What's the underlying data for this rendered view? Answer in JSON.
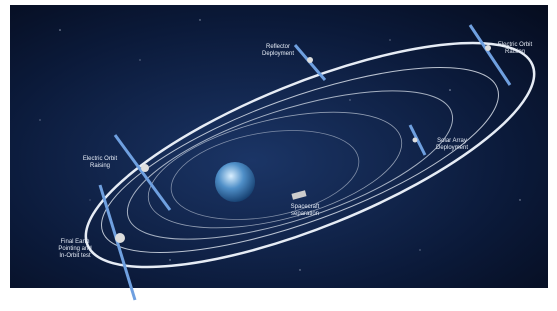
{
  "labels": [
    {
      "lines": [
        "Reflector",
        "Deployment"
      ]
    },
    {
      "lines": [
        "Electric Orbit",
        "Raising"
      ]
    },
    {
      "lines": [
        "Solar Array",
        "Deployment"
      ]
    },
    {
      "lines": [
        "Electric Orbit",
        "Raising"
      ]
    },
    {
      "lines": [
        "Spacecraft",
        "separation"
      ]
    },
    {
      "lines": [
        "Final Earth",
        "Pointing and",
        "In-Orbit test"
      ]
    }
  ]
}
